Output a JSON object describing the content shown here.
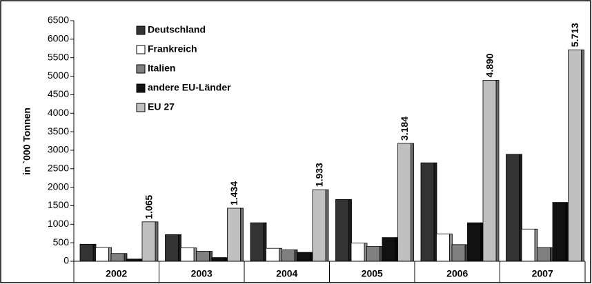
{
  "chart_data": {
    "type": "bar",
    "y_label": "in `000 Tonnen",
    "categories": [
      "2002",
      "2003",
      "2004",
      "2005",
      "2006",
      "2007"
    ],
    "series": [
      {
        "name": "Deutschland",
        "color": "#333333",
        "values": [
          460,
          720,
          1040,
          1670,
          2660,
          2890
        ]
      },
      {
        "name": "Frankreich",
        "color": "#ffffff",
        "values": [
          370,
          360,
          350,
          490,
          740,
          870
        ]
      },
      {
        "name": "Italien",
        "color": "#808080",
        "values": [
          210,
          270,
          310,
          400,
          450,
          370
        ]
      },
      {
        "name": "andere EU-Länder",
        "color": "#111111",
        "values": [
          60,
          100,
          240,
          640,
          1040,
          1590
        ]
      },
      {
        "name": "EU 27",
        "color": "#c0c0c0",
        "values": [
          1065,
          1434,
          1933,
          3184,
          4890,
          5713
        ],
        "value_labels": [
          "1.065",
          "1.434",
          "1.933",
          "3.184",
          "4.890",
          "5.713"
        ]
      }
    ],
    "ylim": [
      0,
      6500
    ],
    "yticks": [
      0,
      500,
      1000,
      1500,
      2000,
      2500,
      3000,
      3500,
      4000,
      4500,
      5000,
      5500,
      6000,
      6500
    ]
  }
}
